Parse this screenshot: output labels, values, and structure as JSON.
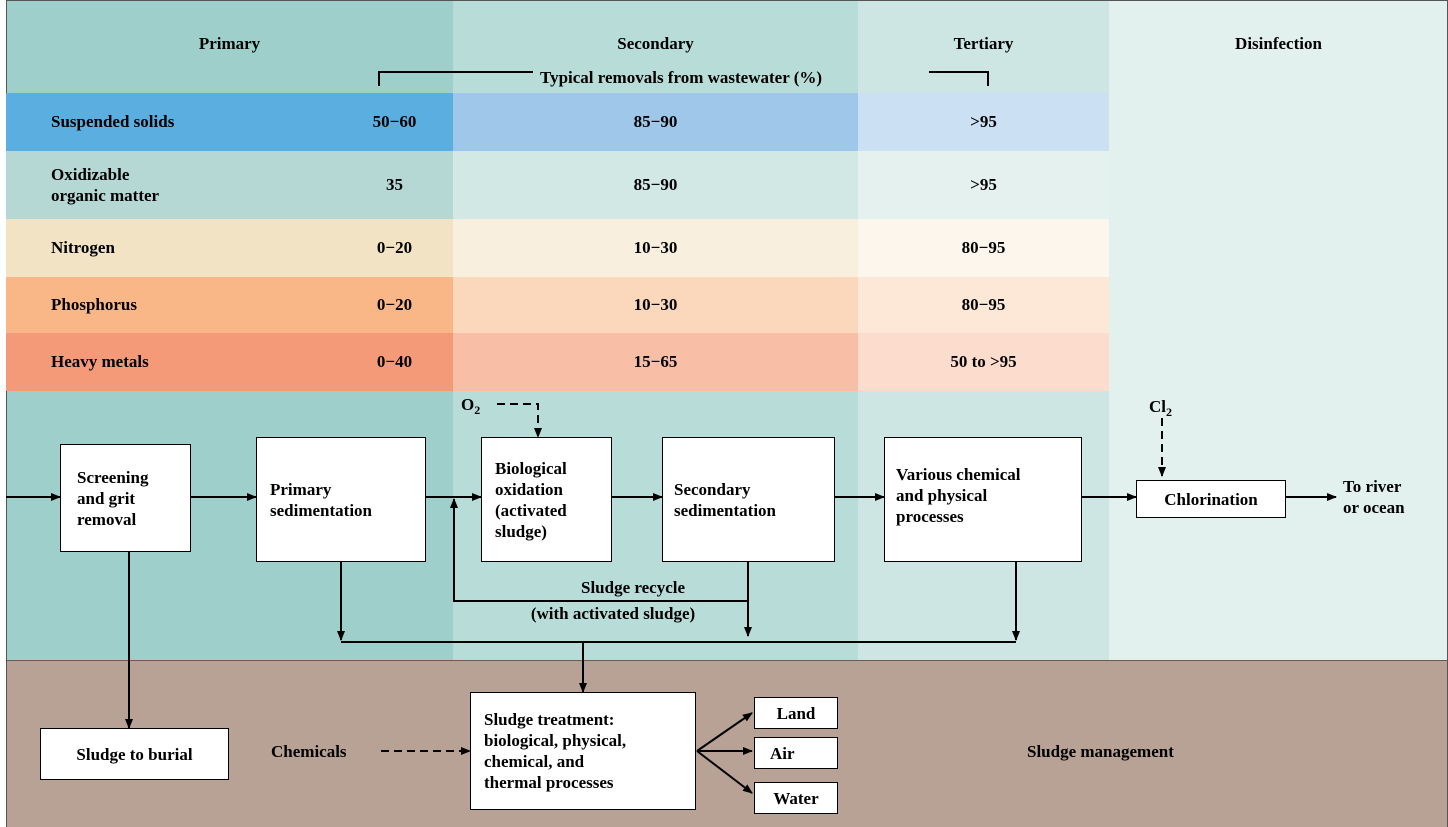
{
  "stages": {
    "primary": "Primary",
    "secondary": "Secondary",
    "tertiary": "Tertiary",
    "disinfection": "Disinfection"
  },
  "removals_title": "Typical removals from wastewater (%)",
  "rows": [
    {
      "label": "Suspended solids",
      "primary": "50−60",
      "secondary": "85−90",
      "tertiary": ">95"
    },
    {
      "label_line1": "Oxidizable",
      "label_line2": "organic matter",
      "primary": "35",
      "secondary": "85−90",
      "tertiary": ">95"
    },
    {
      "label": "Nitrogen",
      "primary": "0−20",
      "secondary": "10−30",
      "tertiary": "80−95"
    },
    {
      "label": "Phosphorus",
      "primary": "0−20",
      "secondary": "10−30",
      "tertiary": "80−95"
    },
    {
      "label": "Heavy metals",
      "primary": "0−40",
      "secondary": "15−65",
      "tertiary": "50 to >95"
    }
  ],
  "flow": {
    "screening": [
      "Screening",
      "and grit",
      "removal"
    ],
    "primary_sed": [
      "Primary",
      "sedimentation"
    ],
    "bio_ox": [
      "Biological",
      "oxidation",
      "(activated",
      "sludge)"
    ],
    "secondary_sed": [
      "Secondary",
      "sedimentation"
    ],
    "various": [
      "Various chemical",
      "and physical",
      "processes"
    ],
    "chlorination": "Chlorination",
    "to_river": [
      "To river",
      "or ocean"
    ],
    "o2": "O",
    "o2_sub": "2",
    "cl2": "Cl",
    "cl2_sub": "2",
    "sludge_recycle": [
      "Sludge recycle",
      "(with activated sludge)"
    ]
  },
  "sludge": {
    "burial": "Sludge to burial",
    "chemicals": "Chemicals",
    "treatment": [
      "Sludge treatment:",
      "biological, physical,",
      "chemical, and",
      "thermal processes"
    ],
    "land": "Land",
    "air": "Air",
    "water": "Water",
    "management": "Sludge management"
  },
  "colors": {
    "primary_band": "#9ecfca",
    "secondary_band": "#b8dcd8",
    "tertiary_band": "#cde6e3",
    "disinfection_band": "#e2f0ee",
    "sludge_band": "#b8a295",
    "suspended": [
      "#5aaee0",
      "#9ec7ea",
      "#cce0f4"
    ],
    "oxidizable": [
      "#b5d8d5",
      "#d2e8e5",
      "#e4f1ef"
    ],
    "nitrogen": [
      "#f2e3c5",
      "#f8efde",
      "#fcf6ec"
    ],
    "phosphorus": [
      "#f9b787",
      "#fbd7bb",
      "#fde8d8"
    ],
    "heavy_metals": [
      "#f49a79",
      "#f8bea6",
      "#fbdccd"
    ]
  }
}
